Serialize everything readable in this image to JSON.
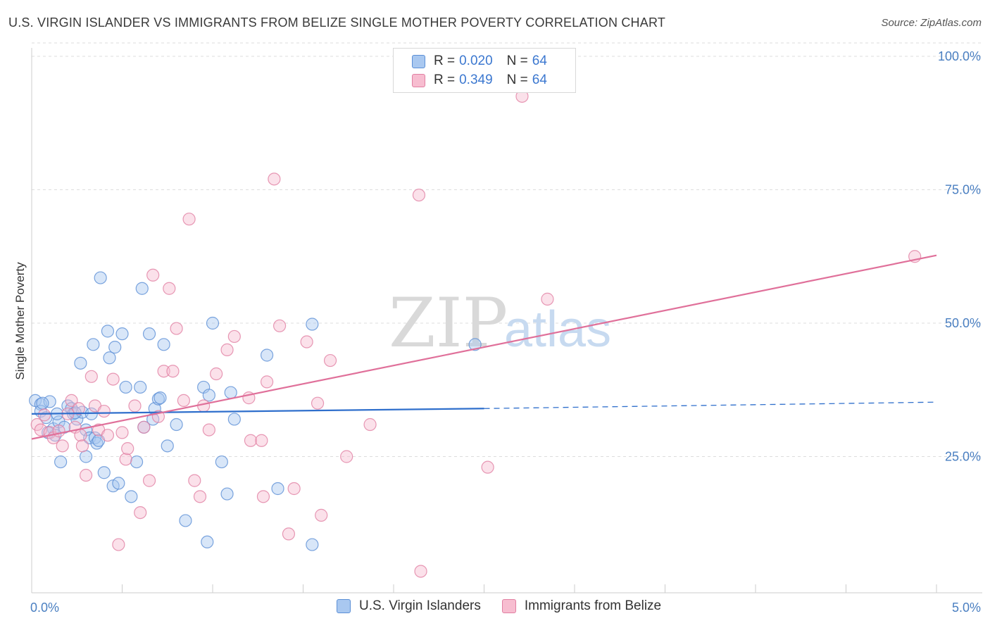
{
  "title": "U.S. VIRGIN ISLANDER VS IMMIGRANTS FROM BELIZE SINGLE MOTHER POVERTY CORRELATION CHART",
  "source": "Source: ZipAtlas.com",
  "watermark": {
    "zip": "ZIP",
    "atlas": "atlas"
  },
  "legend_top": [
    {
      "r_label": "R = ",
      "r_value": "0.020",
      "n_label": "N = ",
      "n_value": "64",
      "color": "#a9c8f0",
      "border": "#5b8fd6"
    },
    {
      "r_label": "R = ",
      "r_value": "0.349",
      "n_label": "N = ",
      "n_value": "64",
      "color": "#f7bdd0",
      "border": "#e17fa2"
    }
  ],
  "chart_data": {
    "type": "scatter",
    "title": "U.S. VIRGIN ISLANDER VS IMMIGRANTS FROM BELIZE SINGLE MOTHER POVERTY CORRELATION CHART",
    "xlabel": "",
    "ylabel": "Single Mother Poverty",
    "xlim": [
      0,
      5
    ],
    "ylim": [
      0,
      100
    ],
    "x_ticks": [
      "0.0%",
      "5.0%"
    ],
    "y_ticks": [
      {
        "value": 100,
        "label": "100.0%"
      },
      {
        "value": 75,
        "label": "75.0%"
      },
      {
        "value": 50,
        "label": "50.0%"
      },
      {
        "value": 25,
        "label": "25.0%"
      }
    ],
    "series": [
      {
        "name": "U.S. Virgin Islanders",
        "color": "#5b8fd6",
        "fill": "#a9c8f0",
        "trend": {
          "x0": 0.0,
          "y0": 33.0,
          "x1": 2.5,
          "y1": 34.0,
          "dash_to_x": 5.0,
          "dash_to_y": 35.2,
          "line_color": "#2f6fcc"
        },
        "points": [
          [
            0.02,
            35.5
          ],
          [
            0.05,
            34.8
          ],
          [
            0.05,
            33.5
          ],
          [
            0.08,
            32.3
          ],
          [
            0.1,
            35.3
          ],
          [
            0.12,
            30.2
          ],
          [
            0.13,
            29.0
          ],
          [
            0.15,
            31.5
          ],
          [
            0.16,
            24.0
          ],
          [
            0.18,
            30.5
          ],
          [
            0.2,
            34.5
          ],
          [
            0.22,
            34.0
          ],
          [
            0.23,
            33.0
          ],
          [
            0.25,
            32.0
          ],
          [
            0.27,
            42.5
          ],
          [
            0.28,
            33.3
          ],
          [
            0.3,
            30.0
          ],
          [
            0.3,
            25.0
          ],
          [
            0.32,
            28.5
          ],
          [
            0.34,
            46.0
          ],
          [
            0.35,
            28.5
          ],
          [
            0.36,
            27.5
          ],
          [
            0.37,
            28.0
          ],
          [
            0.38,
            58.5
          ],
          [
            0.4,
            22.0
          ],
          [
            0.42,
            48.5
          ],
          [
            0.43,
            43.5
          ],
          [
            0.45,
            19.5
          ],
          [
            0.46,
            45.5
          ],
          [
            0.48,
            20.0
          ],
          [
            0.5,
            48.0
          ],
          [
            0.52,
            38.0
          ],
          [
            0.55,
            17.5
          ],
          [
            0.58,
            24.0
          ],
          [
            0.6,
            38.0
          ],
          [
            0.61,
            56.5
          ],
          [
            0.62,
            30.5
          ],
          [
            0.65,
            48.0
          ],
          [
            0.67,
            32.0
          ],
          [
            0.68,
            34.0
          ],
          [
            0.7,
            35.8
          ],
          [
            0.73,
            46.0
          ],
          [
            0.75,
            27.0
          ],
          [
            0.8,
            31.0
          ],
          [
            0.85,
            13.0
          ],
          [
            0.95,
            38.0
          ],
          [
            0.97,
            9.0
          ],
          [
            1.0,
            50.0
          ],
          [
            1.05,
            24.0
          ],
          [
            1.08,
            18.0
          ],
          [
            1.1,
            37.0
          ],
          [
            1.12,
            32.0
          ],
          [
            1.3,
            44.0
          ],
          [
            1.36,
            19.0
          ],
          [
            1.55,
            8.5
          ],
          [
            1.55,
            49.8
          ],
          [
            2.45,
            46.0
          ],
          [
            0.06,
            35.0
          ],
          [
            0.09,
            29.5
          ],
          [
            0.14,
            33.0
          ],
          [
            0.24,
            33.2
          ],
          [
            0.33,
            33.0
          ],
          [
            0.71,
            36.0
          ],
          [
            0.98,
            36.5
          ]
        ]
      },
      {
        "name": "Immigrants from Belize",
        "color": "#e17fa2",
        "fill": "#f7bdd0",
        "trend": {
          "x0": 0.0,
          "y0": 28.3,
          "x1": 5.0,
          "y1": 62.7,
          "line_color": "#e0709a"
        },
        "points": [
          [
            0.03,
            31.0
          ],
          [
            0.05,
            30.0
          ],
          [
            0.07,
            32.8
          ],
          [
            0.1,
            29.5
          ],
          [
            0.12,
            28.5
          ],
          [
            0.15,
            29.8
          ],
          [
            0.17,
            27.0
          ],
          [
            0.2,
            33.0
          ],
          [
            0.22,
            35.5
          ],
          [
            0.24,
            30.5
          ],
          [
            0.27,
            29.0
          ],
          [
            0.28,
            27.0
          ],
          [
            0.3,
            21.5
          ],
          [
            0.33,
            40.0
          ],
          [
            0.35,
            34.5
          ],
          [
            0.37,
            30.0
          ],
          [
            0.4,
            33.5
          ],
          [
            0.42,
            29.0
          ],
          [
            0.45,
            39.5
          ],
          [
            0.48,
            8.5
          ],
          [
            0.5,
            29.5
          ],
          [
            0.52,
            24.5
          ],
          [
            0.53,
            26.5
          ],
          [
            0.57,
            34.5
          ],
          [
            0.6,
            14.5
          ],
          [
            0.62,
            30.5
          ],
          [
            0.65,
            20.5
          ],
          [
            0.67,
            59.0
          ],
          [
            0.7,
            32.5
          ],
          [
            0.73,
            41.0
          ],
          [
            0.76,
            56.5
          ],
          [
            0.78,
            41.0
          ],
          [
            0.8,
            49.0
          ],
          [
            0.84,
            35.5
          ],
          [
            0.87,
            69.5
          ],
          [
            0.9,
            20.5
          ],
          [
            0.93,
            17.5
          ],
          [
            0.95,
            34.5
          ],
          [
            0.98,
            30.0
          ],
          [
            1.02,
            40.5
          ],
          [
            1.08,
            45.0
          ],
          [
            1.12,
            47.5
          ],
          [
            1.2,
            36.0
          ],
          [
            1.21,
            28.0
          ],
          [
            1.28,
            17.5
          ],
          [
            1.3,
            39.0
          ],
          [
            1.34,
            77.0
          ],
          [
            1.37,
            49.5
          ],
          [
            1.42,
            10.5
          ],
          [
            1.45,
            19.0
          ],
          [
            1.52,
            46.5
          ],
          [
            1.58,
            35.0
          ],
          [
            1.6,
            14.0
          ],
          [
            1.65,
            43.0
          ],
          [
            1.74,
            25.0
          ],
          [
            1.87,
            31.0
          ],
          [
            2.14,
            74.0
          ],
          [
            2.15,
            3.5
          ],
          [
            2.52,
            23.0
          ],
          [
            2.71,
            92.5
          ],
          [
            2.85,
            54.5
          ],
          [
            4.88,
            62.5
          ],
          [
            0.26,
            34.0
          ],
          [
            1.27,
            28.0
          ]
        ]
      }
    ]
  },
  "bottom_legend": [
    {
      "label": "U.S. Virgin Islanders",
      "color": "#a9c8f0",
      "border": "#5b8fd6"
    },
    {
      "label": "Immigrants from Belize",
      "color": "#f7bdd0",
      "border": "#e17fa2"
    }
  ]
}
